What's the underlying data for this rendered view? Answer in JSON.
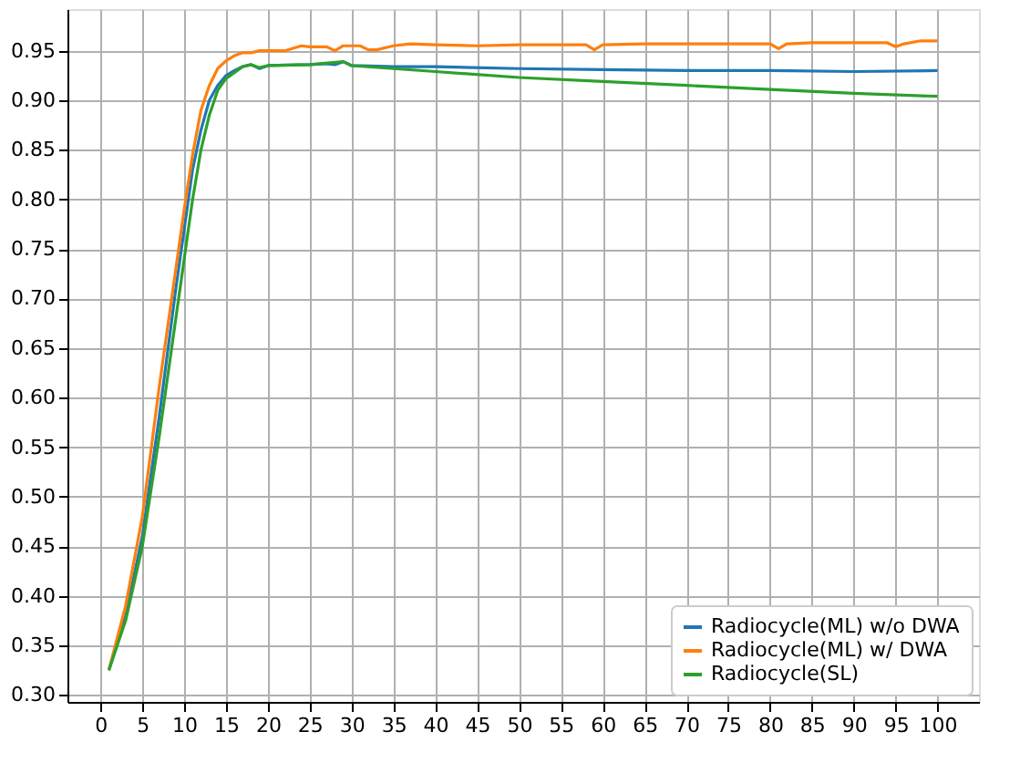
{
  "chart_data": {
    "type": "line",
    "xlim": [
      -3.95,
      104.95
    ],
    "ylim": [
      0.293,
      0.992
    ],
    "xticks": [
      0,
      5,
      10,
      15,
      20,
      25,
      30,
      35,
      40,
      45,
      50,
      55,
      60,
      65,
      70,
      75,
      80,
      85,
      90,
      95,
      100
    ],
    "yticks": [
      {
        "value": 0.3,
        "label": "0.30"
      },
      0.35,
      {
        "value": 0.4,
        "label": "0.40"
      },
      0.45,
      {
        "value": 0.5,
        "label": "0.50"
      },
      0.55,
      {
        "value": 0.6,
        "label": "0.60"
      },
      0.65,
      {
        "value": 0.7,
        "label": "0.70"
      },
      0.75,
      {
        "value": 0.8,
        "label": "0.80"
      },
      0.85,
      {
        "value": 0.9,
        "label": "0.90"
      },
      0.95
    ],
    "grid": true,
    "legend": "bottom right",
    "line_style": "solid",
    "marker": "none",
    "series": [
      {
        "name": "Radiocycle(ML) w/o DWA",
        "color": "#1f77b4",
        "x": [
          1,
          3,
          5,
          7,
          9,
          10,
          11,
          12,
          13,
          14,
          15,
          16,
          17,
          18,
          19,
          20,
          25,
          27,
          28,
          29,
          30,
          35,
          40,
          50,
          60,
          70,
          80,
          90,
          100
        ],
        "values": [
          0.325,
          0.38,
          0.46,
          0.58,
          0.71,
          0.77,
          0.83,
          0.87,
          0.9,
          0.915,
          0.925,
          0.93,
          0.934,
          0.936,
          0.932,
          0.935,
          0.936,
          0.937,
          0.936,
          0.939,
          0.935,
          0.934,
          0.934,
          0.932,
          0.931,
          0.93,
          0.93,
          0.929,
          0.93
        ]
      },
      {
        "name": "Radiocycle(ML) w/ DWA",
        "color": "#ff7f0e",
        "x": [
          1,
          3,
          5,
          7,
          9,
          10,
          11,
          12,
          13,
          14,
          15,
          16,
          17,
          18,
          19,
          20,
          22,
          24,
          25,
          27,
          28,
          29,
          31,
          32,
          33,
          35,
          37,
          40,
          45,
          50,
          55,
          58,
          59,
          60,
          65,
          70,
          75,
          80,
          81,
          82,
          85,
          90,
          94,
          95,
          96,
          98,
          100
        ],
        "values": [
          0.325,
          0.39,
          0.48,
          0.61,
          0.73,
          0.79,
          0.845,
          0.89,
          0.915,
          0.932,
          0.94,
          0.945,
          0.948,
          0.948,
          0.95,
          0.95,
          0.95,
          0.955,
          0.954,
          0.954,
          0.95,
          0.955,
          0.955,
          0.951,
          0.951,
          0.955,
          0.957,
          0.956,
          0.955,
          0.956,
          0.956,
          0.956,
          0.951,
          0.956,
          0.957,
          0.957,
          0.957,
          0.957,
          0.952,
          0.957,
          0.958,
          0.958,
          0.958,
          0.954,
          0.957,
          0.96,
          0.96
        ]
      },
      {
        "name": "Radiocycle(SL)",
        "color": "#2ca02c",
        "x": [
          1,
          3,
          5,
          7,
          9,
          10,
          11,
          12,
          13,
          14,
          15,
          16,
          17,
          18,
          19,
          20,
          25,
          29,
          30,
          35,
          40,
          50,
          60,
          70,
          80,
          90,
          100
        ],
        "values": [
          0.325,
          0.375,
          0.45,
          0.56,
          0.68,
          0.74,
          0.8,
          0.85,
          0.885,
          0.91,
          0.922,
          0.928,
          0.934,
          0.936,
          0.933,
          0.935,
          0.936,
          0.939,
          0.935,
          0.932,
          0.929,
          0.923,
          0.919,
          0.915,
          0.911,
          0.907,
          0.904
        ]
      }
    ]
  }
}
